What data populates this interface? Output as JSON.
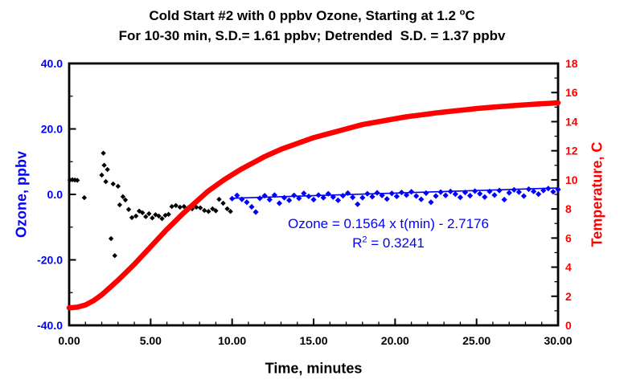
{
  "figure": {
    "title_line1_pre": "Cold Start #2 with 0 ppbv Ozone, Starting at 1.2 ",
    "title_line1_sup": "o",
    "title_line1_post": "C",
    "title_line2": "For 10-30 min, S.D.= 1.61 ppbv; Detrended  S.D. = 1.37 ppbv"
  },
  "annotation": {
    "equation": "Ozone = 0.1564 x t(min) - 2.7176",
    "r_base": "R",
    "r_sup": "2",
    "r_rest": " = 0.3241"
  },
  "colors": {
    "ozone": "#0000FF",
    "temperature": "#FF0000",
    "early_points": "#000000",
    "text": "#000000",
    "frame": "#000000",
    "background": "#FFFFFF"
  },
  "chart_data": {
    "type": "scatter",
    "title_line1": "Cold Start #2 with 0 ppbv Ozone, Starting at 1.2 °C",
    "title_line2": "For 10-30 min, S.D.= 1.61 ppbv; Detrended S.D. = 1.37 ppbv",
    "grid": false,
    "legend": false,
    "x_axis": {
      "label": "Time, minutes",
      "range": [
        0,
        30
      ],
      "major_ticks": [
        0,
        5,
        10,
        15,
        20,
        25,
        30
      ],
      "major_tick_labels": [
        "0.00",
        "5.00",
        "10.00",
        "15.00",
        "20.00",
        "25.00",
        "30.00"
      ],
      "minor_tick_step": 1
    },
    "y_axis_left": {
      "label": "Ozone, ppbv",
      "range": [
        -40,
        40
      ],
      "major_ticks": [
        40,
        20,
        0,
        -20,
        -40
      ],
      "major_tick_labels": [
        "40.0",
        "20.0",
        "0.0",
        "-20.0",
        "-40.0"
      ],
      "minor_tick_step": 10,
      "color": "#0000FF"
    },
    "y_axis_right": {
      "label": "Temperature, C",
      "range": [
        0,
        18
      ],
      "major_ticks": [
        18,
        16,
        14,
        12,
        10,
        8,
        6,
        4,
        2,
        0
      ],
      "major_tick_labels": [
        "18",
        "16",
        "14",
        "12",
        "10",
        "8",
        "6",
        "4",
        "2",
        "0"
      ],
      "minor_tick_step": 1,
      "color": "#FF0000"
    },
    "series": [
      {
        "name": "ozone_0_to_10_min",
        "type": "scatter",
        "axis": "left",
        "marker": "diamond",
        "marker_size": 3.2,
        "color": "#000000",
        "points": [
          [
            0.05,
            4.4
          ],
          [
            0.2,
            4.5
          ],
          [
            0.35,
            4.4
          ],
          [
            0.5,
            4.3
          ],
          [
            0.93,
            -1.0
          ],
          [
            2.0,
            5.9
          ],
          [
            2.1,
            12.6
          ],
          [
            2.15,
            8.9
          ],
          [
            2.25,
            3.9
          ],
          [
            2.35,
            7.6
          ],
          [
            2.57,
            -13.5
          ],
          [
            2.7,
            3.2
          ],
          [
            2.8,
            -18.7
          ],
          [
            3.0,
            2.5
          ],
          [
            3.1,
            -3.2
          ],
          [
            3.3,
            -0.7
          ],
          [
            3.45,
            -1.7
          ],
          [
            3.65,
            -4.6
          ],
          [
            3.85,
            -7.1
          ],
          [
            4.1,
            -6.6
          ],
          [
            4.3,
            -5.1
          ],
          [
            4.5,
            -5.6
          ],
          [
            4.7,
            -6.8
          ],
          [
            4.9,
            -5.9
          ],
          [
            5.1,
            -7.2
          ],
          [
            5.3,
            -6.2
          ],
          [
            5.5,
            -6.6
          ],
          [
            5.7,
            -7.4
          ],
          [
            5.9,
            -6.4
          ],
          [
            6.1,
            -6.1
          ],
          [
            6.3,
            -3.7
          ],
          [
            6.55,
            -3.4
          ],
          [
            6.8,
            -3.9
          ],
          [
            7.05,
            -3.7
          ],
          [
            7.3,
            -4.1
          ],
          [
            7.55,
            -4.4
          ],
          [
            7.8,
            -3.9
          ],
          [
            8.05,
            -4.1
          ],
          [
            8.3,
            -4.9
          ],
          [
            8.55,
            -5.2
          ],
          [
            8.8,
            -4.4
          ],
          [
            9.0,
            -5.0
          ],
          [
            9.2,
            -1.5
          ],
          [
            9.45,
            -2.7
          ],
          [
            9.7,
            -4.4
          ],
          [
            9.9,
            -5.2
          ]
        ]
      },
      {
        "name": "ozone_10_to_30_min",
        "type": "scatter",
        "axis": "left",
        "marker": "diamond",
        "marker_size": 3.6,
        "color": "#0000FF",
        "points": [
          [
            10.0,
            -1.3
          ],
          [
            10.3,
            -0.3
          ],
          [
            10.6,
            -1.5
          ],
          [
            10.9,
            -2.4
          ],
          [
            11.2,
            -3.8
          ],
          [
            11.45,
            -5.4
          ],
          [
            11.7,
            -1.2
          ],
          [
            12.0,
            -0.4
          ],
          [
            12.3,
            -1.6
          ],
          [
            12.6,
            -0.2
          ],
          [
            12.9,
            -2.7
          ],
          [
            13.2,
            -1.0
          ],
          [
            13.5,
            -1.8
          ],
          [
            13.8,
            -0.3
          ],
          [
            14.1,
            -1.2
          ],
          [
            14.4,
            0.3
          ],
          [
            14.7,
            -0.6
          ],
          [
            15.0,
            -1.6
          ],
          [
            15.3,
            -0.2
          ],
          [
            15.6,
            -1.0
          ],
          [
            15.9,
            0.2
          ],
          [
            16.2,
            -0.8
          ],
          [
            16.5,
            -1.8
          ],
          [
            16.8,
            -0.4
          ],
          [
            17.1,
            0.4
          ],
          [
            17.4,
            -0.9
          ],
          [
            17.7,
            -3.0
          ],
          [
            18.0,
            -1.0
          ],
          [
            18.3,
            0.2
          ],
          [
            18.6,
            -0.7
          ],
          [
            18.9,
            0.5
          ],
          [
            19.2,
            -0.3
          ],
          [
            19.5,
            -1.4
          ],
          [
            19.8,
            0.3
          ],
          [
            20.1,
            -0.6
          ],
          [
            20.4,
            0.6
          ],
          [
            20.7,
            -0.2
          ],
          [
            21.0,
            0.8
          ],
          [
            21.3,
            -0.5
          ],
          [
            21.6,
            -1.5
          ],
          [
            21.9,
            0.4
          ],
          [
            22.2,
            -2.4
          ],
          [
            22.5,
            -0.5
          ],
          [
            22.8,
            0.7
          ],
          [
            23.1,
            -0.3
          ],
          [
            23.4,
            0.9
          ],
          [
            23.7,
            0.1
          ],
          [
            24.0,
            -0.9
          ],
          [
            24.3,
            0.6
          ],
          [
            24.6,
            -0.4
          ],
          [
            24.9,
            1.0
          ],
          [
            25.2,
            0.2
          ],
          [
            25.5,
            -0.8
          ],
          [
            25.8,
            0.9
          ],
          [
            26.1,
            -0.2
          ],
          [
            26.4,
            1.2
          ],
          [
            26.7,
            -1.6
          ],
          [
            27.0,
            0.5
          ],
          [
            27.3,
            1.4
          ],
          [
            27.6,
            0.7
          ],
          [
            27.9,
            -0.5
          ],
          [
            28.2,
            1.6
          ],
          [
            28.5,
            0.9
          ],
          [
            28.8,
            0.1
          ],
          [
            29.1,
            1.2
          ],
          [
            29.4,
            1.8
          ],
          [
            29.7,
            0.8
          ],
          [
            30.0,
            1.5
          ]
        ]
      },
      {
        "name": "ozone_trend_line",
        "type": "line",
        "axis": "left",
        "color": "#0000FF",
        "width": 1.6,
        "slope": 0.1564,
        "intercept": -2.7176,
        "t_start": 9.9,
        "t_end": 30
      },
      {
        "name": "temperature",
        "type": "line",
        "axis": "right",
        "color": "#FF0000",
        "width": 6.5,
        "points": [
          [
            0,
            1.2
          ],
          [
            0.5,
            1.25
          ],
          [
            1,
            1.4
          ],
          [
            1.5,
            1.7
          ],
          [
            2,
            2.1
          ],
          [
            2.5,
            2.6
          ],
          [
            3,
            3.1
          ],
          [
            3.5,
            3.65
          ],
          [
            4,
            4.2
          ],
          [
            4.5,
            4.8
          ],
          [
            5,
            5.4
          ],
          [
            5.5,
            6.0
          ],
          [
            6,
            6.6
          ],
          [
            6.5,
            7.15
          ],
          [
            7,
            7.7
          ],
          [
            7.5,
            8.2
          ],
          [
            8,
            8.7
          ],
          [
            8.5,
            9.2
          ],
          [
            9,
            9.6
          ],
          [
            9.5,
            10.0
          ],
          [
            10,
            10.35
          ],
          [
            10.5,
            10.7
          ],
          [
            11,
            11.0
          ],
          [
            11.5,
            11.3
          ],
          [
            12,
            11.6
          ],
          [
            12.5,
            11.85
          ],
          [
            13,
            12.1
          ],
          [
            13.5,
            12.3
          ],
          [
            14,
            12.5
          ],
          [
            14.5,
            12.7
          ],
          [
            15,
            12.9
          ],
          [
            15.5,
            13.05
          ],
          [
            16,
            13.2
          ],
          [
            16.5,
            13.35
          ],
          [
            17,
            13.5
          ],
          [
            17.5,
            13.65
          ],
          [
            18,
            13.8
          ],
          [
            18.5,
            13.9
          ],
          [
            19,
            14.0
          ],
          [
            19.5,
            14.1
          ],
          [
            20,
            14.2
          ],
          [
            20.5,
            14.3
          ],
          [
            21,
            14.38
          ],
          [
            21.5,
            14.45
          ],
          [
            22,
            14.52
          ],
          [
            22.5,
            14.6
          ],
          [
            23,
            14.66
          ],
          [
            23.5,
            14.72
          ],
          [
            24,
            14.78
          ],
          [
            24.5,
            14.84
          ],
          [
            25,
            14.9
          ],
          [
            25.5,
            14.95
          ],
          [
            26,
            15.0
          ],
          [
            26.5,
            15.04
          ],
          [
            27,
            15.08
          ],
          [
            27.5,
            15.12
          ],
          [
            28,
            15.16
          ],
          [
            28.5,
            15.2
          ],
          [
            29,
            15.23
          ],
          [
            29.5,
            15.26
          ],
          [
            30,
            15.3
          ]
        ]
      }
    ]
  }
}
